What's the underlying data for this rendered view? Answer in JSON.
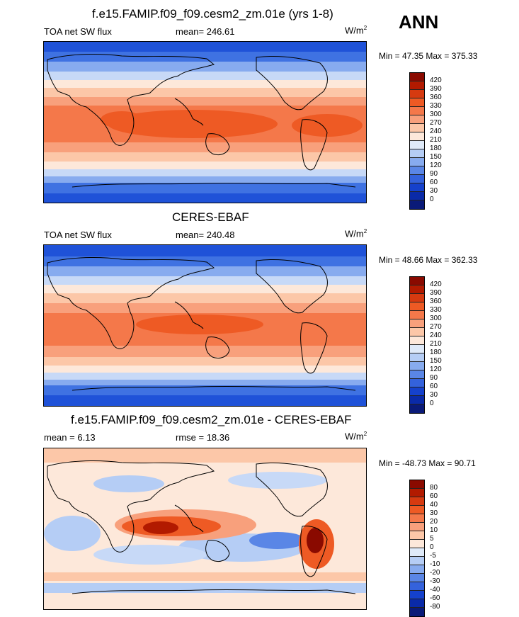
{
  "season": "ANN",
  "panels": [
    {
      "title": "f.e15.FAMIP.f09_f09.cesm2_zm.01e (yrs 1-8)",
      "left_label": "TOA net SW flux",
      "center_label": "mean= 246.61",
      "units": "W/m",
      "units_sup": "2",
      "minmax": "Min =  47.35 Max = 375.33",
      "colorbar": {
        "labels": [
          "420",
          "390",
          "360",
          "330",
          "300",
          "270",
          "240",
          "210",
          "180",
          "150",
          "120",
          "90",
          "60",
          "30",
          "0"
        ],
        "colors": [
          "#8a0a00",
          "#b21a00",
          "#d63a10",
          "#ee5a24",
          "#f4784a",
          "#f8a07c",
          "#fcc7a8",
          "#fde8da",
          "#dfeaf9",
          "#b5cdf5",
          "#87abef",
          "#5a86e6",
          "#3462dc",
          "#1541cc",
          "#0a2aa8",
          "#0a1a78"
        ]
      }
    },
    {
      "title": "CERES-EBAF",
      "left_label": "TOA net SW flux",
      "center_label": "mean= 240.48",
      "units": "W/m",
      "units_sup": "2",
      "minmax": "Min =  48.66 Max = 362.33",
      "colorbar": {
        "labels": [
          "420",
          "390",
          "360",
          "330",
          "300",
          "270",
          "240",
          "210",
          "180",
          "150",
          "120",
          "90",
          "60",
          "30",
          "0"
        ],
        "colors": [
          "#8a0a00",
          "#b21a00",
          "#d63a10",
          "#ee5a24",
          "#f4784a",
          "#f8a07c",
          "#fcc7a8",
          "#fde8da",
          "#dfeaf9",
          "#b5cdf5",
          "#87abef",
          "#5a86e6",
          "#3462dc",
          "#1541cc",
          "#0a2aa8",
          "#0a1a78"
        ]
      }
    },
    {
      "title": "f.e15.FAMIP.f09_f09.cesm2_zm.01e - CERES-EBAF",
      "left_label": "mean =   6.13",
      "center_label": "rmse =  18.36",
      "units": "W/m",
      "units_sup": "2",
      "minmax": "Min = -48.73 Max =  90.71",
      "colorbar": {
        "labels": [
          "80",
          "60",
          "40",
          "30",
          "20",
          "10",
          "5",
          "0",
          "-5",
          "-10",
          "-20",
          "-30",
          "-40",
          "-60",
          "-80"
        ],
        "colors": [
          "#8a0a00",
          "#b21a00",
          "#d63a10",
          "#ee5a24",
          "#f4784a",
          "#f8a07c",
          "#fcc7a8",
          "#fde8da",
          "#dfeaf9",
          "#b5cdf5",
          "#87abef",
          "#5a86e6",
          "#3462dc",
          "#1541cc",
          "#0a2aa8",
          "#0a1a78"
        ]
      }
    }
  ]
}
